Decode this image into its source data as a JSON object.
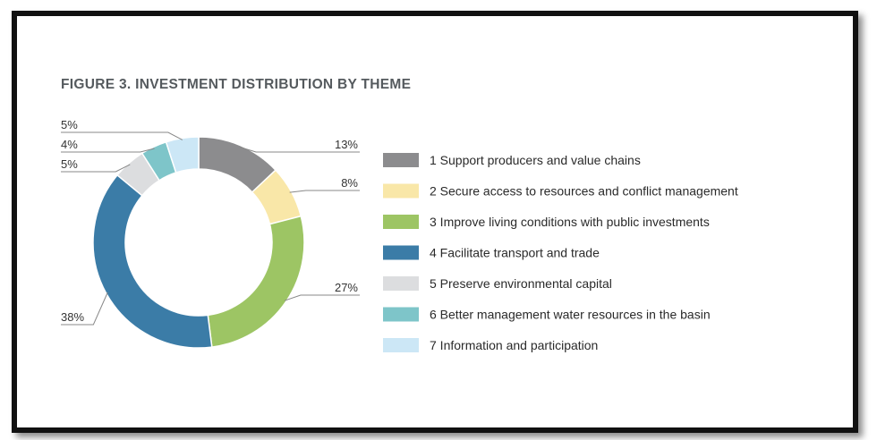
{
  "chart_data": {
    "type": "pie",
    "subtype": "donut",
    "title": "FIGURE 3. INVESTMENT DISTRIBUTION BY THEME",
    "legend_position": "right",
    "slices": [
      {
        "label": "1 Support producers and value chains",
        "value": 13,
        "value_label": "13%",
        "color": "#8c8c8e"
      },
      {
        "label": "2 Secure access to resources and conflict management",
        "value": 8,
        "value_label": "8%",
        "color": "#f9e7a8"
      },
      {
        "label": "3 Improve living conditions with public investments",
        "value": 27,
        "value_label": "27%",
        "color": "#9dc564"
      },
      {
        "label": "4 Facilitate transport and trade",
        "value": 38,
        "value_label": "38%",
        "color": "#3b7ca7"
      },
      {
        "label": "5 Preserve environmental capital",
        "value": 5,
        "value_label": "5%",
        "color": "#dcdddf"
      },
      {
        "label": "6 Better management water resources in the basin",
        "value": 4,
        "value_label": "4%",
        "color": "#7ec5c9"
      },
      {
        "label": "7 Information and participation",
        "value": 5,
        "value_label": "5%",
        "color": "#cce7f6"
      }
    ]
  }
}
